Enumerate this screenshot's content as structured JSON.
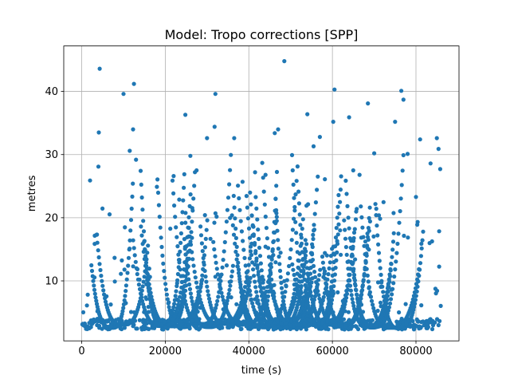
{
  "chart_data": {
    "type": "scatter",
    "title": "Model: Tropo corrections [SPP]",
    "xlabel": "time (s)",
    "ylabel": "metres",
    "xlim": [
      -4300,
      90300
    ],
    "ylim": [
      0.5,
      47.2
    ],
    "xticks": [
      0,
      20000,
      40000,
      60000,
      80000
    ],
    "xtick_labels": [
      "0",
      "20000",
      "40000",
      "60000",
      "80000"
    ],
    "yticks": [
      10,
      20,
      30,
      40
    ],
    "ytick_labels": [
      "10",
      "20",
      "30",
      "40"
    ],
    "grid": true,
    "marker_color": "#1f77b4",
    "series": [
      {
        "values_description_note": "",
        "outliers": [
          [
            4300,
            43.6
          ],
          [
            10000,
            39.6
          ],
          [
            12500,
            41.2
          ],
          [
            32000,
            39.6
          ],
          [
            48500,
            44.8
          ],
          [
            60500,
            40.3
          ],
          [
            68500,
            38.1
          ],
          [
            76500,
            40.1
          ],
          [
            77000,
            38.7
          ],
          [
            24800,
            36.3
          ],
          [
            54000,
            36.4
          ],
          [
            64000,
            35.9
          ],
          [
            75000,
            35.2
          ],
          [
            60200,
            35.2
          ],
          [
            31800,
            34.4
          ],
          [
            46200,
            33.4
          ],
          [
            57000,
            32.8
          ],
          [
            85000,
            32.6
          ],
          [
            81000,
            32.4
          ],
          [
            4100,
            33.5
          ],
          [
            12300,
            34.0
          ],
          [
            26000,
            29.8
          ],
          [
            36500,
            32.6
          ],
          [
            30000,
            32.6
          ],
          [
            47000,
            34.0
          ],
          [
            78000,
            30.1
          ],
          [
            70000,
            30.2
          ],
          [
            85400,
            30.9
          ],
          [
            55500,
            31.3
          ],
          [
            11500,
            30.6
          ],
          [
            41500,
            27.2
          ],
          [
            65000,
            27.5
          ],
          [
            22000,
            26.6
          ],
          [
            2000,
            25.9
          ],
          [
            13000,
            29.2
          ],
          [
            18000,
            24.9
          ],
          [
            27500,
            27.5
          ],
          [
            38500,
            25.7
          ],
          [
            58200,
            26.1
          ],
          [
            66500,
            26.8
          ],
          [
            80000,
            23.3
          ],
          [
            83500,
            28.6
          ],
          [
            85800,
            27.7
          ],
          [
            4000,
            28.1
          ],
          [
            44000,
            26.8
          ]
        ]
      }
    ],
    "periodic_model": {
      "arc_count": 34,
      "note": ""
    }
  }
}
